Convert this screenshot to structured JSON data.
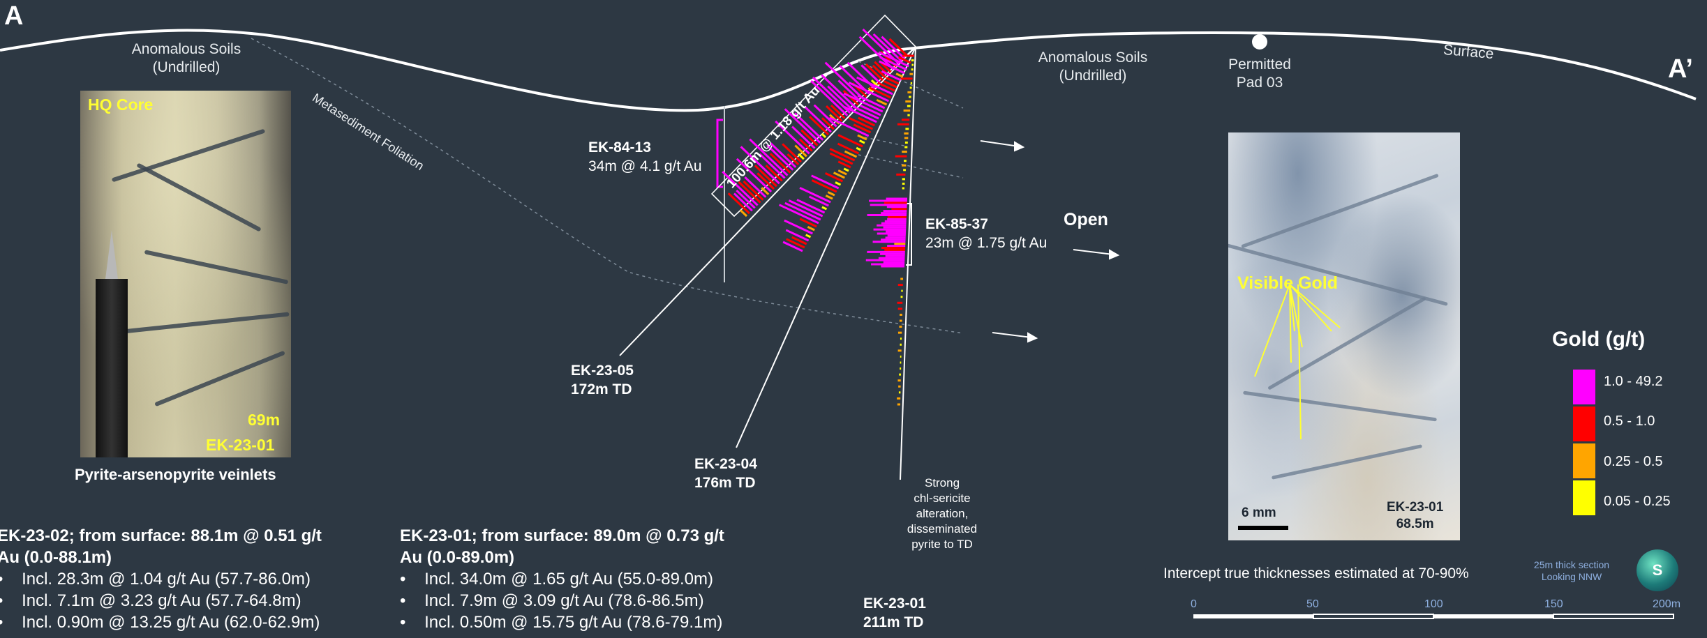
{
  "section": {
    "corner_left": "A",
    "corner_right": "A’",
    "surface_label": "Surface",
    "foliation_label": "Metasediment Foliation",
    "soils_left": [
      "Anomalous Soils",
      "(Undrilled)"
    ],
    "soils_right": [
      "Anomalous Soils",
      "(Undrilled)"
    ],
    "pad": [
      "Permitted",
      "Pad 03"
    ],
    "open_label": "Open",
    "alteration_note": [
      "Strong",
      "chl-sericite",
      "alteration,",
      "disseminated",
      "pyrite to TD"
    ]
  },
  "intercepts": [
    {
      "id": "ek-84-13",
      "hole": "EK-84-13",
      "result": "34m @ 4.1 g/t Au"
    },
    {
      "id": "ek-85-37",
      "hole": "EK-85-37",
      "result": "23m @ 1.75 g/t Au"
    },
    {
      "id": "ek-23-05-interval",
      "result": "100.6m @ 1.18 g/t Au"
    }
  ],
  "holes": [
    {
      "id": "ek-23-05",
      "name": "EK-23-05",
      "td": "172m TD"
    },
    {
      "id": "ek-23-04",
      "name": "EK-23-04",
      "td": "176m TD"
    },
    {
      "id": "ek-23-01",
      "name": "EK-23-01",
      "td": "211m TD"
    }
  ],
  "core_photo": {
    "label_top": "HQ Core",
    "depth": "69m",
    "hole": "EK-23-01",
    "caption": "Pyrite-arsenopyrite veinlets"
  },
  "gold_photo": {
    "label": "Visible Gold",
    "scale": "6 mm",
    "hole": "EK-23-01",
    "depth": "68.5m"
  },
  "legend": {
    "title": "Gold (g/t)",
    "items": [
      {
        "label": "1.0 - 49.2",
        "color": "#ff00ff"
      },
      {
        "label": "0.5 - 1.0",
        "color": "#ff0000"
      },
      {
        "label": "0.25 - 0.5",
        "color": "#ffa500"
      },
      {
        "label": "0.05 - 0.25",
        "color": "#ffff00"
      }
    ]
  },
  "results": [
    {
      "heading_line1": "EK-23-02; from surface: 88.1m @ 0.51 g/t",
      "heading_line2": "Au (0.0-88.1m)",
      "bullets": [
        "Incl. 28.3m @ 1.04 g/t Au (57.7-86.0m)",
        "Incl. 7.1m @ 3.23 g/t Au (57.7-64.8m)",
        "Incl. 0.90m @ 13.25 g/t Au (62.0-62.9m)"
      ]
    },
    {
      "heading_line1": "EK-23-01; from surface: 89.0m @ 0.73 g/t",
      "heading_line2": "Au (0.0-89.0m)",
      "bullets": [
        "Incl. 34.0m @ 1.65 g/t Au (55.0-89.0m)",
        "Incl. 7.9m @ 3.09 g/t Au (78.6-86.5m)",
        "Incl. 0.50m @ 15.75 g/t Au (78.6-79.1m)"
      ]
    }
  ],
  "thickness_note": "Intercept true thicknesses estimated at 70-90%",
  "section_note": [
    "25m thick section",
    "Looking NNW"
  ],
  "scale_bar": {
    "ticks": [
      "0",
      "50",
      "100",
      "150",
      "200m"
    ]
  },
  "logo_text": "S"
}
